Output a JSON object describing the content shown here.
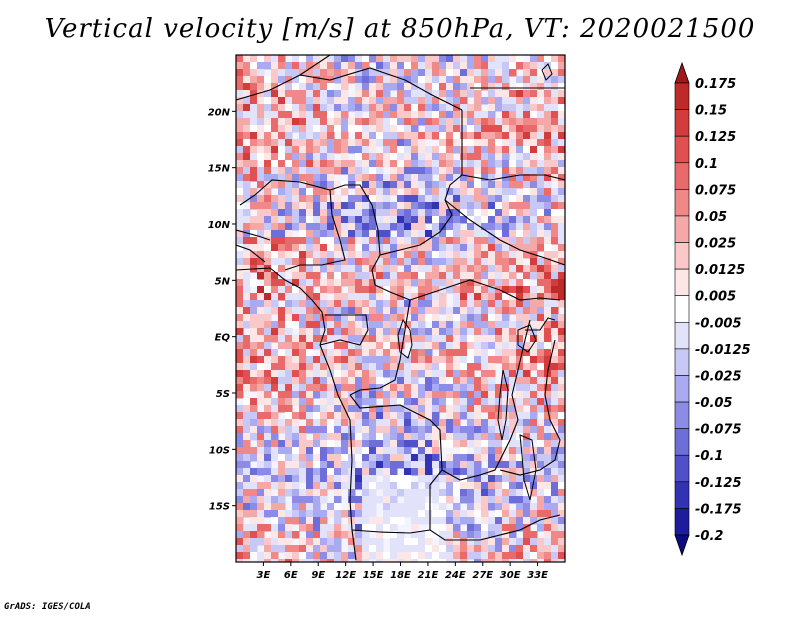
{
  "title": "Vertical velocity [m/s] at 850hPa, VT: 2020021500",
  "credit": "GrADS: IGES/COLA",
  "map": {
    "variable": "Vertical velocity",
    "units": "m/s",
    "level": "850hPa",
    "valid_time": "2020021500",
    "lon_range": [
      0,
      36
    ],
    "lat_range": [
      -20,
      25
    ],
    "lat_ticks": [
      {
        "value": 20,
        "label": "20N"
      },
      {
        "value": 15,
        "label": "15N"
      },
      {
        "value": 10,
        "label": "10N"
      },
      {
        "value": 5,
        "label": "5N"
      },
      {
        "value": 0,
        "label": "EQ"
      },
      {
        "value": -5,
        "label": "5S"
      },
      {
        "value": -10,
        "label": "10S"
      },
      {
        "value": -15,
        "label": "15S"
      }
    ],
    "lon_ticks": [
      {
        "value": 3,
        "label": "3E"
      },
      {
        "value": 6,
        "label": "6E"
      },
      {
        "value": 9,
        "label": "9E"
      },
      {
        "value": 12,
        "label": "12E"
      },
      {
        "value": 15,
        "label": "15E"
      },
      {
        "value": 18,
        "label": "18E"
      },
      {
        "value": 21,
        "label": "21E"
      },
      {
        "value": 24,
        "label": "24E"
      },
      {
        "value": 27,
        "label": "27E"
      },
      {
        "value": 30,
        "label": "30E"
      },
      {
        "value": 33,
        "label": "33E"
      }
    ]
  },
  "colorbar": {
    "levels": [
      "0.175",
      "0.15",
      "0.125",
      "0.1",
      "0.075",
      "0.05",
      "0.025",
      "0.0125",
      "0.005",
      "-0.005",
      "-0.0125",
      "-0.025",
      "-0.05",
      "-0.075",
      "-0.1",
      "-0.125",
      "-0.175",
      "-0.2"
    ],
    "colors": [
      "#a01818",
      "#be2a2a",
      "#d23c3c",
      "#e05050",
      "#e86a6a",
      "#f08888",
      "#f5a8a8",
      "#fac8c8",
      "#fde6e6",
      "#ffffff",
      "#e2e2fb",
      "#c8c8f6",
      "#aaaaf0",
      "#8c8ce6",
      "#6e6ed8",
      "#5050c8",
      "#3232b4",
      "#1c1c9c",
      "#0c0c82"
    ]
  }
}
